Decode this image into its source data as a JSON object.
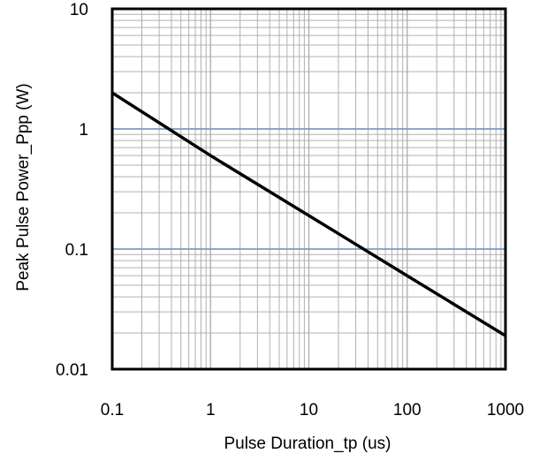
{
  "chart_data": {
    "type": "line",
    "title": "",
    "xlabel": "Pulse Duration_tp (us)",
    "ylabel": "Peak Pulse Power_Ppp (W)",
    "xscale": "log",
    "yscale": "log",
    "xlim": [
      0.1,
      1000
    ],
    "ylim": [
      0.01,
      10
    ],
    "grid": true,
    "x_ticks": [
      {
        "value": 0.1,
        "label": "0.1"
      },
      {
        "value": 1,
        "label": "1"
      },
      {
        "value": 10,
        "label": "10"
      },
      {
        "value": 100,
        "label": "100"
      },
      {
        "value": 1000,
        "label": "1000"
      }
    ],
    "y_ticks": [
      {
        "value": 0.01,
        "label": "0.01"
      },
      {
        "value": 0.1,
        "label": "0.1"
      },
      {
        "value": 1,
        "label": "1"
      },
      {
        "value": 10,
        "label": "10"
      }
    ],
    "colors": {
      "line": "#000000",
      "grid_minor": "#b0b0b0",
      "grid_major_y": "#7a9cc4",
      "frame": "#000000"
    },
    "series": [
      {
        "x": [
          0.1,
          1,
          10,
          100,
          1000
        ],
        "y": [
          2.0,
          0.6,
          0.19,
          0.06,
          0.019
        ]
      }
    ]
  }
}
